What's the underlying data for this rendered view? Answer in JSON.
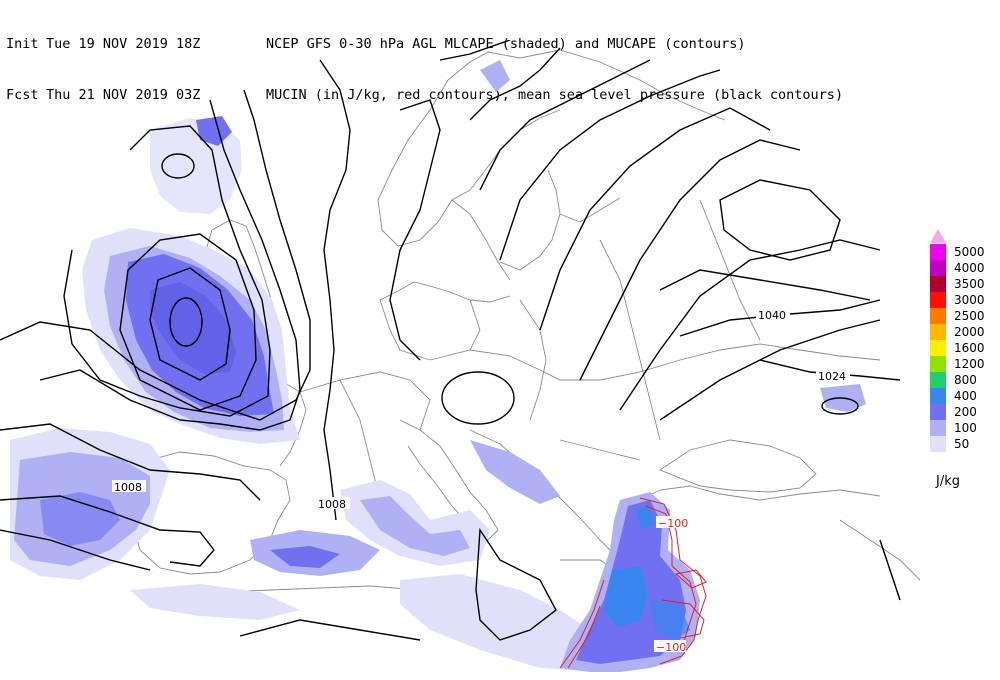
{
  "header": {
    "line1": {
      "label": "Init",
      "datetime": "Tue 19 NOV 2019 18Z",
      "description": "NCEP GFS 0-30 hPa AGL MLCAPE (shaded) and MUCAPE (contours)"
    },
    "line2": {
      "label": "Fcst",
      "datetime": "Thu 21 NOV 2019 03Z",
      "description": "MUCIN (in J/kg, red contours), mean sea level pressure (black contours)"
    }
  },
  "legend": {
    "top_arrow_color": "#f4a6f4",
    "levels": [
      {
        "value": "5000",
        "color": "#f000f0"
      },
      {
        "value": "4000",
        "color": "#c000c0"
      },
      {
        "value": "3500",
        "color": "#b00030"
      },
      {
        "value": "3000",
        "color": "#ff1000"
      },
      {
        "value": "2500",
        "color": "#ff7a00"
      },
      {
        "value": "2000",
        "color": "#ffb800"
      },
      {
        "value": "1600",
        "color": "#ffee00"
      },
      {
        "value": "1200",
        "color": "#90e000"
      },
      {
        "value": "800",
        "color": "#20d070"
      },
      {
        "value": "400",
        "color": "#3a86f0"
      },
      {
        "value": "200",
        "color": "#7070f0"
      },
      {
        "value": "100",
        "color": "#b0b0f4"
      },
      {
        "value": "50",
        "color": "#e0e0fa"
      }
    ],
    "units": "J/kg"
  },
  "contour_labels": {
    "isobar_1040": "1040",
    "isobar_1024": "1024",
    "isobar_1008_west": "1008",
    "isobar_1008_center": "1008",
    "mucin_100_a": "−100",
    "mucin_100_b": "−100"
  }
}
